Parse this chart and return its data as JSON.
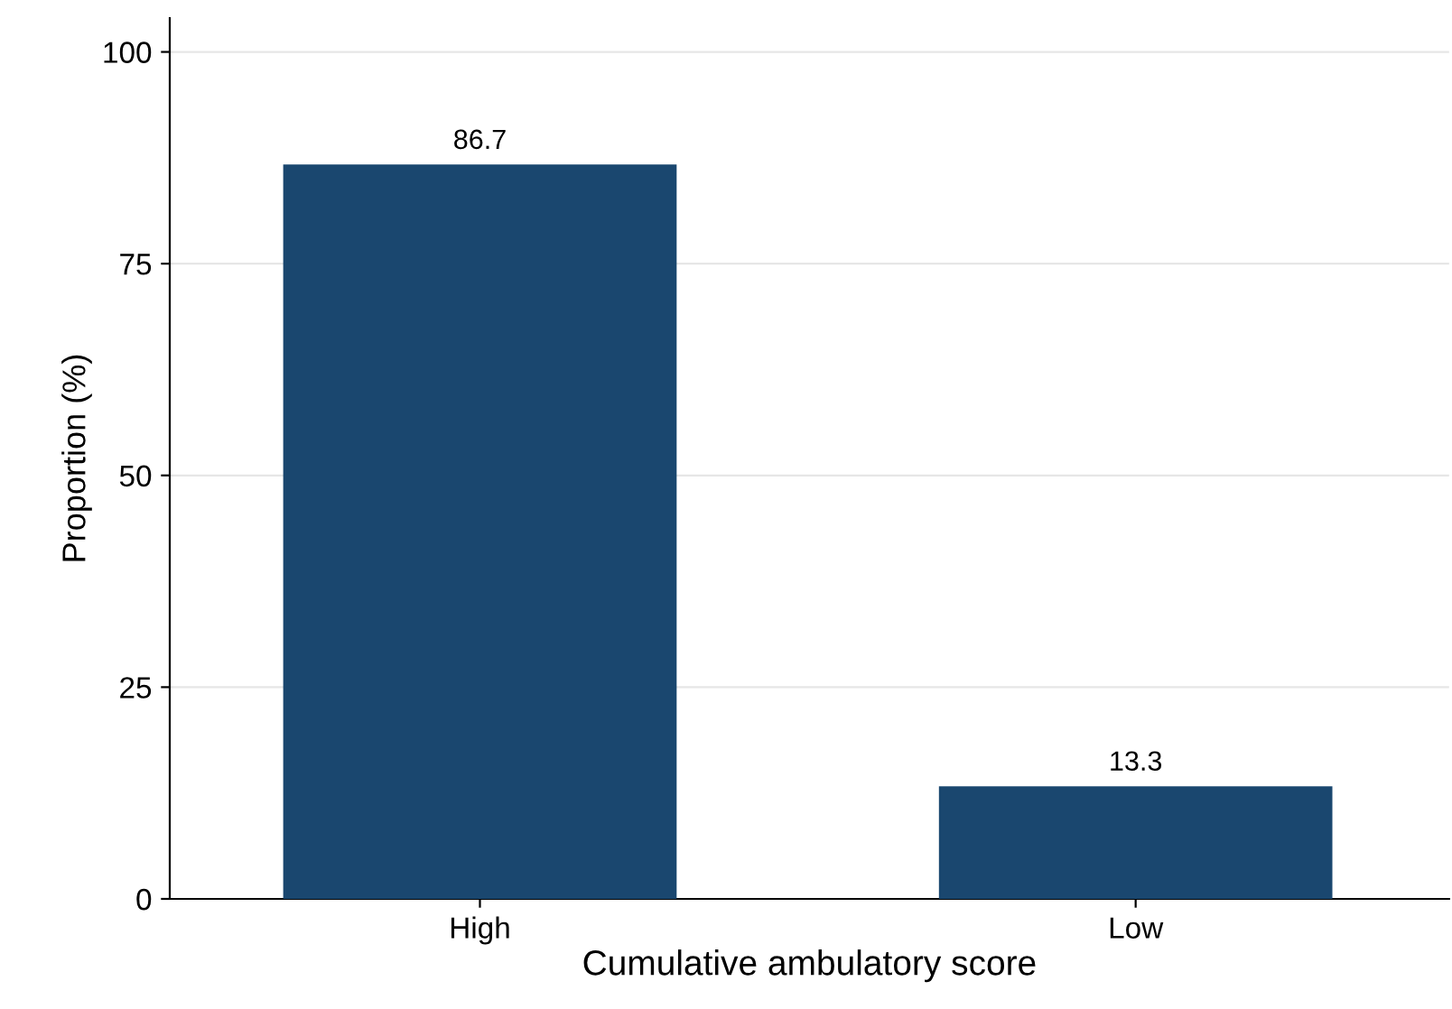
{
  "chart_data": {
    "type": "bar",
    "xlabel": "Cumulative ambulatory score",
    "ylabel": "Proportion (%)",
    "categories": [
      "High",
      "Low"
    ],
    "values": [
      86.7,
      13.3
    ],
    "color": "#1a476f",
    "ylim": [
      0,
      104
    ],
    "yticks": [
      0,
      25,
      50,
      75,
      100
    ],
    "grid": "y",
    "data_labels": true
  }
}
